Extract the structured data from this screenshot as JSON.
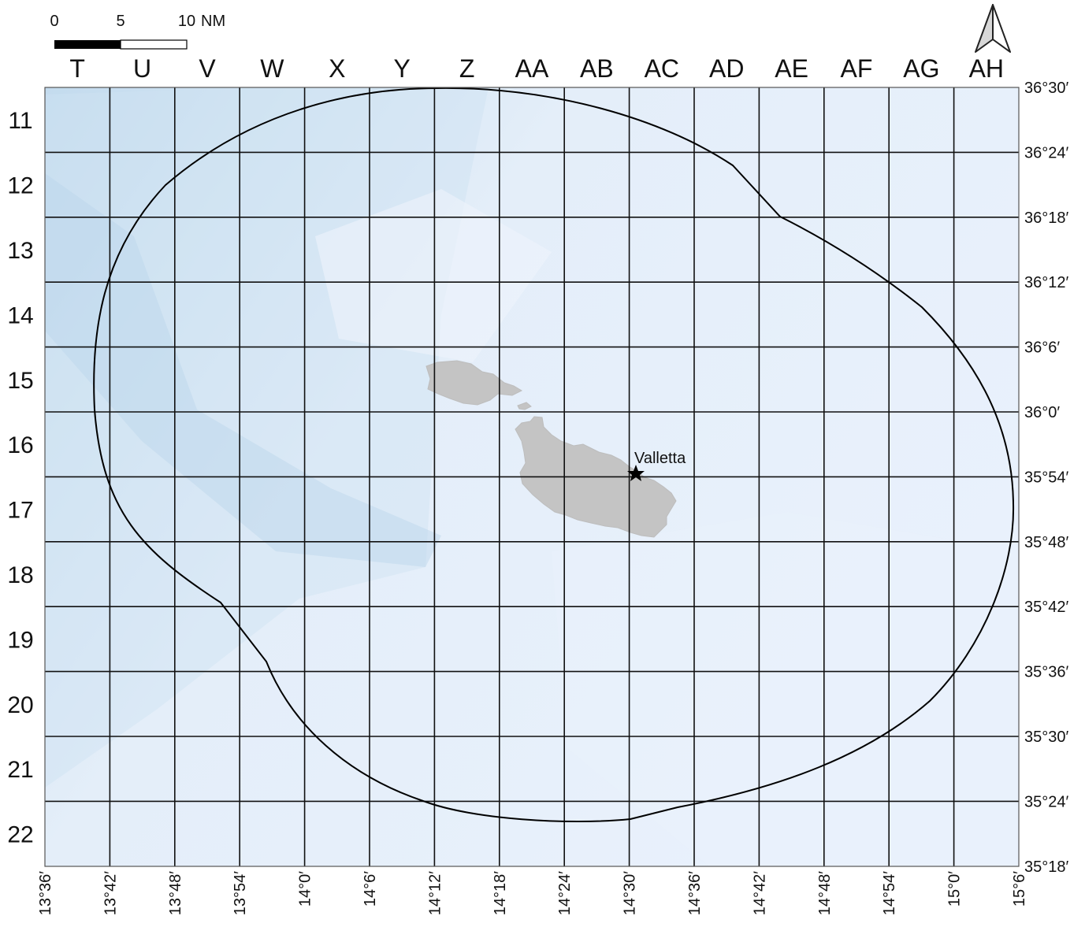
{
  "map": {
    "columns": [
      "T",
      "U",
      "V",
      "W",
      "X",
      "Y",
      "Z",
      "AA",
      "AB",
      "AC",
      "AD",
      "AE",
      "AF",
      "AG",
      "AH"
    ],
    "rows": [
      "11",
      "12",
      "13",
      "14",
      "15",
      "16",
      "17",
      "18",
      "19",
      "20",
      "21",
      "22"
    ],
    "latitude_labels": [
      "36°30′",
      "36°24′",
      "36°18′",
      "36°12′",
      "36°6′",
      "36°0′",
      "35°54′",
      "35°48′",
      "35°42′",
      "35°36′",
      "35°30′",
      "35°24′",
      "35°18′"
    ],
    "longitude_labels": [
      "13°36′",
      "13°42′",
      "13°48′",
      "13°54′",
      "14°0′",
      "14°6′",
      "14°12′",
      "14°18′",
      "14°24′",
      "14°30′",
      "14°36′",
      "14°42′",
      "14°48′",
      "14°54′",
      "15°0′",
      "15°6′"
    ],
    "scale_bar": {
      "ticks": [
        "0",
        "5",
        "10"
      ],
      "unit": "NM"
    },
    "place": {
      "name": "Valletta",
      "symbol": "star"
    },
    "north_arrow": "north-arrow-icon",
    "colors": {
      "sea": "#e7f0fb",
      "deep_sea": "#bcd6eb",
      "land": "#c4c4c4",
      "grid": "#111111",
      "boundary": "#000000"
    }
  }
}
